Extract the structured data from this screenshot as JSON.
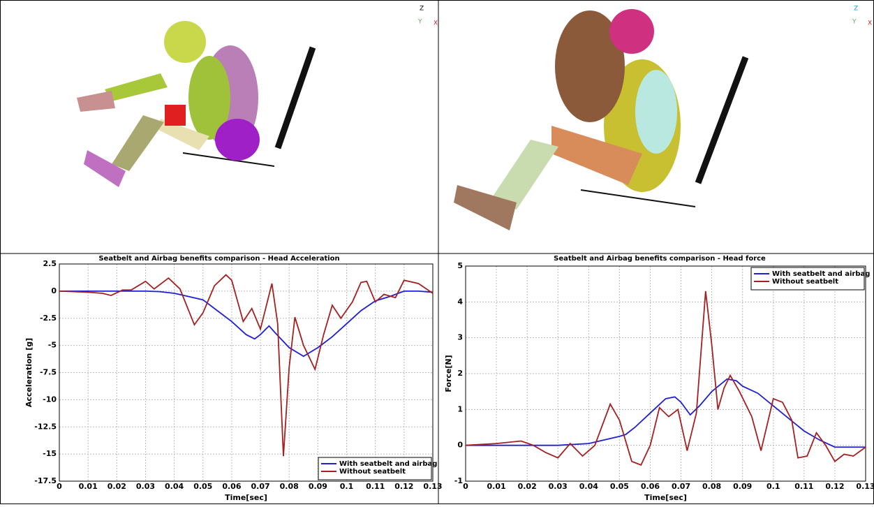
{
  "views": [
    {
      "axis_z": "Z",
      "axis_y": "Y",
      "axis_x": "X"
    },
    {
      "axis_z": "Z",
      "axis_y": "Y",
      "axis_x": "X"
    }
  ],
  "chart_data": [
    {
      "type": "line",
      "title": "Seatbelt and Airbag benefits comparison - Head Acceleration",
      "x_label": "Time[sec]",
      "y_label": "Acceleration [g]",
      "xlim": [
        0,
        0.13
      ],
      "xticks": [
        0,
        0.01,
        0.02,
        0.03,
        0.04,
        0.05,
        0.06,
        0.07,
        0.08,
        0.09,
        0.1,
        0.11,
        0.12,
        0.13
      ],
      "ylim": [
        -17.5,
        2.5
      ],
      "yticks": [
        2.5,
        0,
        -2.5,
        -5,
        -7.5,
        -10,
        -12.5,
        -15,
        -17.5
      ],
      "grid": true,
      "legend": "lower right",
      "series": [
        {
          "name": "With seatbelt and airbag",
          "color": "#1f1fd6",
          "x": [
            0,
            0.005,
            0.01,
            0.015,
            0.02,
            0.025,
            0.03,
            0.035,
            0.04,
            0.045,
            0.05,
            0.055,
            0.06,
            0.065,
            0.068,
            0.07,
            0.073,
            0.075,
            0.08,
            0.085,
            0.09,
            0.095,
            0.1,
            0.105,
            0.11,
            0.115,
            0.12,
            0.125,
            0.13
          ],
          "values": [
            0,
            0,
            0,
            0,
            0,
            0,
            0,
            -0.05,
            -0.2,
            -0.5,
            -0.8,
            -1.8,
            -2.8,
            -4.0,
            -4.4,
            -4.0,
            -3.2,
            -3.8,
            -5.2,
            -6.0,
            -5.2,
            -4.2,
            -3.0,
            -1.8,
            -0.9,
            -0.5,
            0,
            0,
            -0.1
          ]
        },
        {
          "name": "Without seatbelt",
          "color": "#a52020",
          "x": [
            0,
            0.005,
            0.01,
            0.015,
            0.018,
            0.022,
            0.025,
            0.03,
            0.033,
            0.038,
            0.042,
            0.047,
            0.05,
            0.054,
            0.058,
            0.06,
            0.064,
            0.067,
            0.07,
            0.074,
            0.076,
            0.078,
            0.08,
            0.082,
            0.085,
            0.089,
            0.092,
            0.095,
            0.098,
            0.102,
            0.105,
            0.107,
            0.11,
            0.113,
            0.117,
            0.12,
            0.125,
            0.13
          ],
          "values": [
            0,
            -0.05,
            -0.1,
            -0.2,
            -0.4,
            0.1,
            0.1,
            0.9,
            0.2,
            1.2,
            0.2,
            -3.1,
            -2.0,
            0.5,
            1.5,
            1.0,
            -2.8,
            -1.6,
            -3.5,
            0.7,
            -3.0,
            -15.2,
            -7.0,
            -2.4,
            -5.0,
            -7.2,
            -4.0,
            -1.3,
            -2.5,
            -1.0,
            0.8,
            0.9,
            -1.0,
            -0.3,
            -0.6,
            1.0,
            0.7,
            -0.2
          ]
        }
      ]
    },
    {
      "type": "line",
      "title": "Seatbelt and Airbag benefits comparison - Head force",
      "x_label": "Time[sec]",
      "y_label": "Force[N]",
      "xlim": [
        0,
        0.13
      ],
      "xticks": [
        0,
        0.01,
        0.02,
        0.03,
        0.04,
        0.05,
        0.06,
        0.07,
        0.08,
        0.09,
        0.1,
        0.11,
        0.12,
        0.13
      ],
      "ylim": [
        -1,
        5
      ],
      "yticks": [
        5,
        4,
        3,
        2,
        1,
        0,
        -1
      ],
      "grid": true,
      "legend": "upper right",
      "series": [
        {
          "name": "With seatbelt and airbag",
          "color": "#1f1fd6",
          "x": [
            0,
            0.01,
            0.02,
            0.03,
            0.04,
            0.045,
            0.05,
            0.052,
            0.055,
            0.06,
            0.065,
            0.068,
            0.07,
            0.073,
            0.076,
            0.08,
            0.085,
            0.088,
            0.09,
            0.095,
            0.1,
            0.105,
            0.11,
            0.115,
            0.12,
            0.125,
            0.13
          ],
          "values": [
            0,
            0,
            0,
            0,
            0.05,
            0.15,
            0.25,
            0.3,
            0.5,
            0.9,
            1.3,
            1.35,
            1.2,
            0.85,
            1.1,
            1.5,
            1.85,
            1.8,
            1.65,
            1.45,
            1.1,
            0.75,
            0.4,
            0.15,
            -0.05,
            -0.05,
            -0.05
          ]
        },
        {
          "name": "Without seatbelt",
          "color": "#a52020",
          "x": [
            0,
            0.01,
            0.018,
            0.022,
            0.026,
            0.03,
            0.034,
            0.038,
            0.042,
            0.047,
            0.05,
            0.054,
            0.057,
            0.06,
            0.063,
            0.066,
            0.069,
            0.072,
            0.075,
            0.078,
            0.08,
            0.082,
            0.084,
            0.086,
            0.089,
            0.093,
            0.096,
            0.1,
            0.103,
            0.106,
            0.108,
            0.111,
            0.114,
            0.117,
            0.12,
            0.123,
            0.126,
            0.13
          ],
          "values": [
            0,
            0.05,
            0.12,
            0,
            -0.2,
            -0.35,
            0.05,
            -0.3,
            0,
            1.15,
            0.7,
            -0.45,
            -0.55,
            0,
            1.05,
            0.8,
            1.0,
            -0.15,
            0.9,
            4.3,
            2.8,
            1.0,
            1.6,
            1.95,
            1.5,
            0.8,
            -0.15,
            1.3,
            1.2,
            0.7,
            -0.35,
            -0.3,
            0.35,
            0,
            -0.45,
            -0.25,
            -0.3,
            -0.05
          ]
        }
      ]
    }
  ]
}
